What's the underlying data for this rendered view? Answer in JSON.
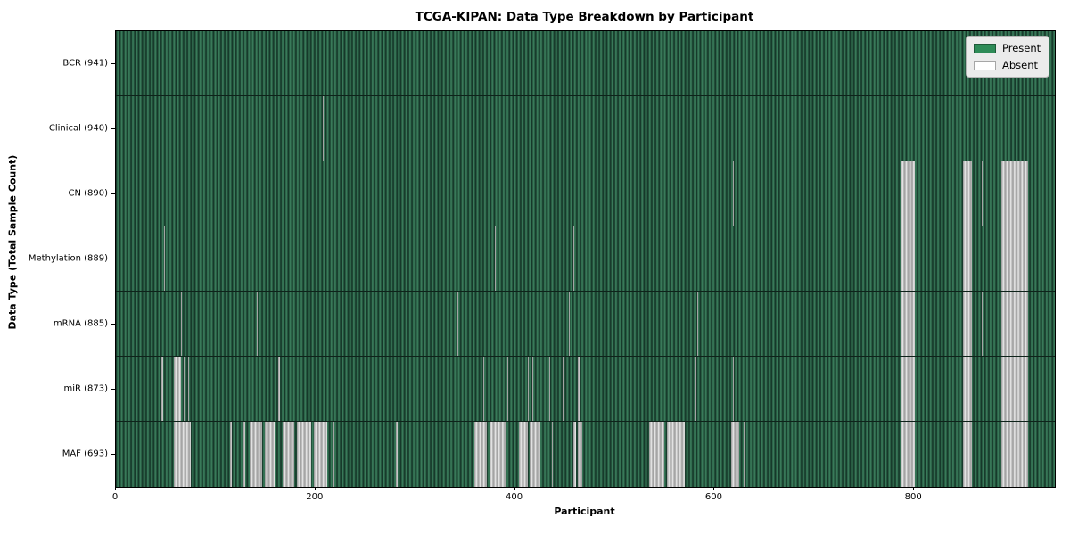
{
  "chart_data": {
    "type": "heatmap",
    "title": "TCGA-KIPAN: Data Type Breakdown by Participant",
    "xlabel": "Participant",
    "ylabel": "Data Type (Total Sample Count)",
    "xlim": [
      0,
      941
    ],
    "xticks": [
      0,
      200,
      400,
      600,
      800
    ],
    "grid": false,
    "legend_position": "upper right",
    "legend": [
      {
        "label": "Present",
        "color": "#2e8b57"
      },
      {
        "label": "Absent",
        "color": "#ffffff"
      }
    ],
    "cell_values": {
      "present": 1,
      "absent": 0
    },
    "rows": [
      {
        "label": "BCR (941)",
        "data_type": "BCR",
        "total_sample_count": 941,
        "absent_ranges": []
      },
      {
        "label": "Clinical (940)",
        "data_type": "Clinical",
        "total_sample_count": 940,
        "absent_ranges": [
          [
            207,
            208
          ]
        ]
      },
      {
        "label": "CN (890)",
        "data_type": "CN",
        "total_sample_count": 890,
        "absent_ranges": [
          [
            61,
            62
          ],
          [
            618,
            619
          ],
          [
            786,
            801
          ],
          [
            849,
            858
          ],
          [
            868,
            869
          ],
          [
            887,
            914
          ]
        ]
      },
      {
        "label": "Methylation (889)",
        "data_type": "Methylation",
        "total_sample_count": 889,
        "absent_ranges": [
          [
            48,
            49
          ],
          [
            333,
            334
          ],
          [
            380,
            381
          ],
          [
            458,
            459
          ],
          [
            786,
            801
          ],
          [
            849,
            858
          ],
          [
            887,
            914
          ]
        ]
      },
      {
        "label": "mRNA (885)",
        "data_type": "mRNA",
        "total_sample_count": 885,
        "absent_ranges": [
          [
            65,
            66
          ],
          [
            135,
            136
          ],
          [
            141,
            142
          ],
          [
            342,
            343
          ],
          [
            454,
            455
          ],
          [
            583,
            584
          ],
          [
            786,
            801
          ],
          [
            849,
            858
          ],
          [
            868,
            869
          ],
          [
            887,
            914
          ]
        ]
      },
      {
        "label": "miR (873)",
        "data_type": "miR",
        "total_sample_count": 873,
        "absent_ranges": [
          [
            46,
            47
          ],
          [
            58,
            65
          ],
          [
            68,
            69
          ],
          [
            72,
            73
          ],
          [
            163,
            164
          ],
          [
            368,
            369
          ],
          [
            392,
            393
          ],
          [
            413,
            414
          ],
          [
            417,
            418
          ],
          [
            434,
            435
          ],
          [
            448,
            449
          ],
          [
            463,
            466
          ],
          [
            548,
            549
          ],
          [
            580,
            581
          ],
          [
            618,
            619
          ],
          [
            786,
            801
          ],
          [
            849,
            858
          ],
          [
            887,
            914
          ]
        ]
      },
      {
        "label": "MAF (693)",
        "data_type": "MAF",
        "total_sample_count": 693,
        "absent_ranges": [
          [
            44,
            45
          ],
          [
            58,
            75
          ],
          [
            114,
            116
          ],
          [
            128,
            130
          ],
          [
            134,
            147
          ],
          [
            149,
            159
          ],
          [
            167,
            179
          ],
          [
            181,
            196
          ],
          [
            198,
            212
          ],
          [
            218,
            219
          ],
          [
            281,
            282
          ],
          [
            316,
            317
          ],
          [
            359,
            372
          ],
          [
            374,
            391
          ],
          [
            404,
            413
          ],
          [
            415,
            425
          ],
          [
            437,
            438
          ],
          [
            458,
            461
          ],
          [
            463,
            467
          ],
          [
            534,
            550
          ],
          [
            552,
            570
          ],
          [
            617,
            625
          ],
          [
            629,
            630
          ],
          [
            786,
            801
          ],
          [
            849,
            858
          ],
          [
            887,
            914
          ]
        ]
      }
    ]
  }
}
